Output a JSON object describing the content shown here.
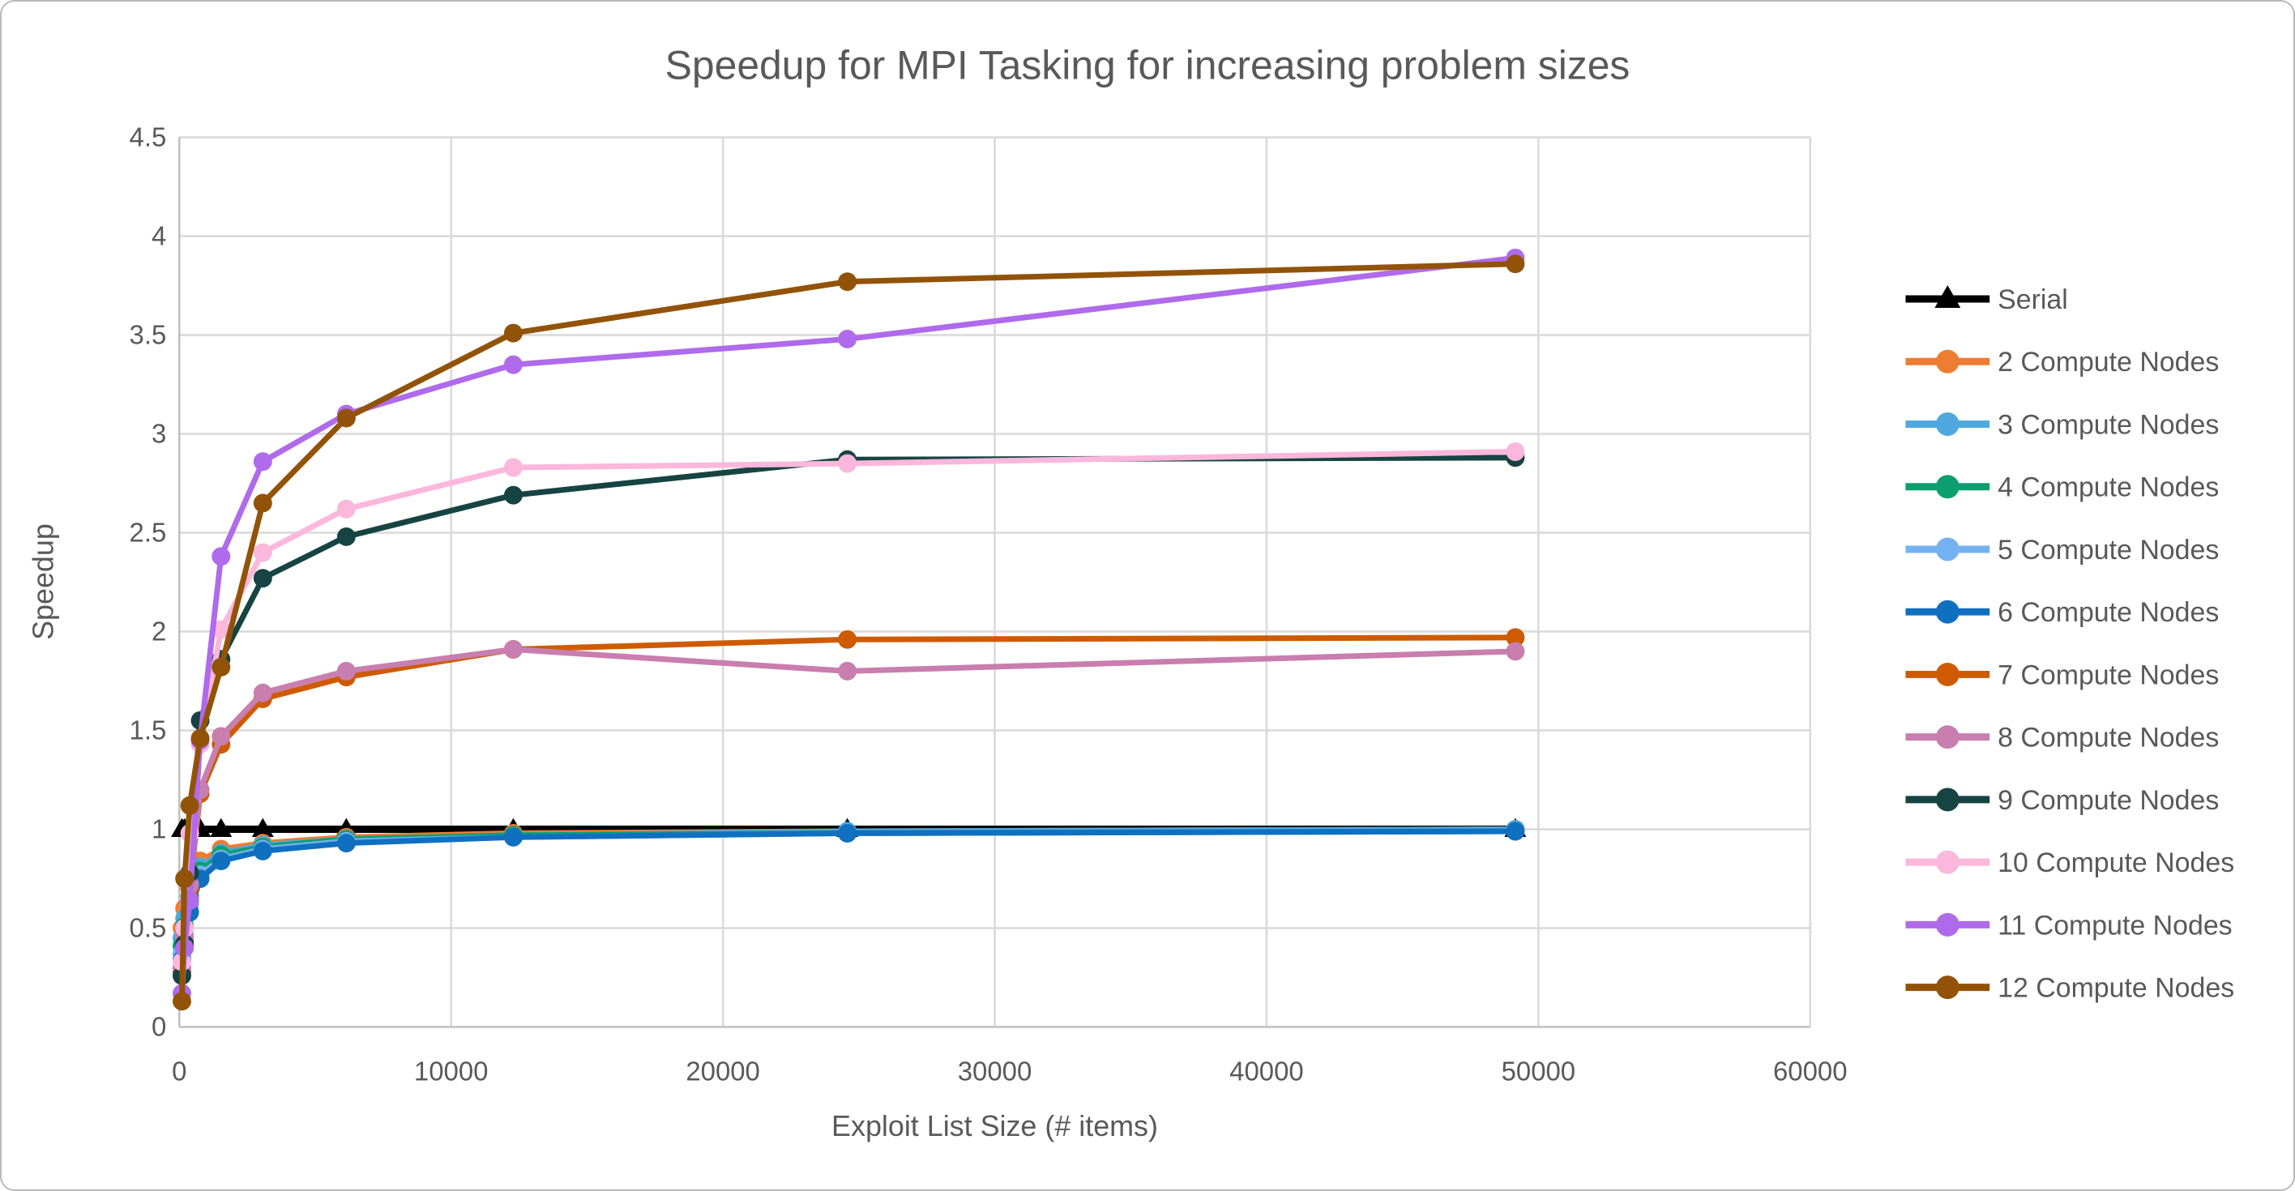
{
  "title": "Speedup for MPI Tasking for increasing problem sizes",
  "colors": {
    "text": "#595959",
    "gridline": "#d9d9d9",
    "axis_line": "#bfbfbf",
    "background": "#ffffff"
  },
  "chart_data": {
    "type": "line",
    "title": "Speedup for MPI Tasking for increasing problem sizes",
    "xlabel": "Exploit List Size (# items)",
    "ylabel": "Speedup",
    "xlim": [
      0,
      60000
    ],
    "ylim": [
      0,
      4.5
    ],
    "grid": true,
    "legend_position": "right",
    "x_tick_labels": [
      "0",
      "10000",
      "20000",
      "30000",
      "40000",
      "50000",
      "60000"
    ],
    "x_tick_values": [
      0,
      10000,
      20000,
      30000,
      40000,
      50000,
      60000
    ],
    "y_tick_labels": [
      "0",
      "0.5",
      "1",
      "1.5",
      "2",
      "2.5",
      "3",
      "3.5",
      "4",
      "4.5"
    ],
    "y_tick_values": [
      0,
      0.5,
      1,
      1.5,
      2,
      2.5,
      3,
      3.5,
      4,
      4.5
    ],
    "x": [
      96,
      192,
      384,
      768,
      1536,
      3072,
      6144,
      12288,
      24576,
      49152
    ],
    "series": [
      {
        "name": "Serial",
        "color": "#000000",
        "marker": "triangle",
        "line_width": 9,
        "values": [
          1.0,
          1.0,
          1.0,
          1.0,
          1.0,
          1.0,
          1.0,
          1.0,
          1.0,
          1.0
        ]
      },
      {
        "name": "2 Compute Nodes",
        "color": "#ED7D31",
        "marker": "circle",
        "line_width": 7,
        "values": [
          0.5,
          0.6,
          0.74,
          0.84,
          0.9,
          0.93,
          0.96,
          0.98,
          0.99,
          1.0
        ]
      },
      {
        "name": "3 Compute Nodes",
        "color": "#4FA8DE",
        "marker": "circle",
        "line_width": 7,
        "values": [
          0.45,
          0.55,
          0.7,
          0.81,
          0.88,
          0.92,
          0.95,
          0.97,
          0.99,
          1.0
        ]
      },
      {
        "name": "4 Compute Nodes",
        "color": "#0C9E6E",
        "marker": "circle",
        "line_width": 7,
        "values": [
          0.41,
          0.51,
          0.66,
          0.79,
          0.87,
          0.91,
          0.95,
          0.97,
          0.98,
          0.99
        ]
      },
      {
        "name": "5 Compute Nodes",
        "color": "#74B1F2",
        "marker": "circle",
        "line_width": 7,
        "values": [
          0.37,
          0.47,
          0.62,
          0.77,
          0.85,
          0.9,
          0.94,
          0.96,
          0.98,
          0.99
        ]
      },
      {
        "name": "6 Compute Nodes",
        "color": "#1070C0",
        "marker": "circle",
        "line_width": 7,
        "values": [
          0.34,
          0.44,
          0.58,
          0.75,
          0.84,
          0.89,
          0.93,
          0.96,
          0.98,
          0.99
        ]
      },
      {
        "name": "7 Compute Nodes",
        "color": "#CE5B01",
        "marker": "circle",
        "line_width": 7,
        "values": [
          0.28,
          0.43,
          0.7,
          1.18,
          1.43,
          1.66,
          1.77,
          1.91,
          1.96,
          1.97
        ]
      },
      {
        "name": "8 Compute Nodes",
        "color": "#C87EAE",
        "marker": "circle",
        "line_width": 7,
        "values": [
          0.3,
          0.45,
          0.72,
          1.2,
          1.47,
          1.69,
          1.8,
          1.91,
          1.8,
          1.9
        ]
      },
      {
        "name": "9 Compute Nodes",
        "color": "#164442",
        "marker": "circle",
        "line_width": 7,
        "values": [
          0.26,
          0.42,
          0.78,
          1.55,
          1.86,
          2.27,
          2.48,
          2.69,
          2.87,
          2.88
        ]
      },
      {
        "name": "10 Compute Nodes",
        "color": "#FBB7DC",
        "marker": "circle",
        "line_width": 7,
        "values": [
          0.33,
          0.5,
          0.98,
          1.43,
          2.01,
          2.4,
          2.62,
          2.83,
          2.85,
          2.91
        ]
      },
      {
        "name": "11 Compute Nodes",
        "color": "#AF6BEB",
        "marker": "circle",
        "line_width": 7,
        "values": [
          0.17,
          0.4,
          0.64,
          1.45,
          2.38,
          2.86,
          3.1,
          3.35,
          3.48,
          3.89
        ]
      },
      {
        "name": "12 Compute Nodes",
        "color": "#925309",
        "marker": "circle",
        "line_width": 7,
        "values": [
          0.13,
          0.75,
          1.12,
          1.46,
          1.82,
          2.65,
          3.08,
          3.51,
          3.77,
          3.86
        ]
      }
    ]
  }
}
